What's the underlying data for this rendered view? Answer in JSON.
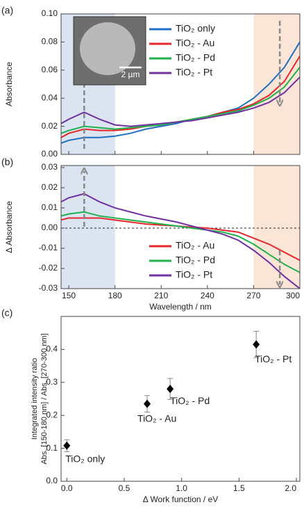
{
  "chart_data": [
    {
      "type": "line",
      "panel_label": "(a)",
      "ylabel": "Absorbance",
      "x": [
        145,
        150,
        160,
        170,
        180,
        190,
        200,
        210,
        220,
        230,
        240,
        250,
        260,
        270,
        280,
        290,
        300
      ],
      "series": [
        {
          "name": "TiO₂ only",
          "color": "#1f6fc5",
          "values": [
            0.008,
            0.01,
            0.012,
            0.012,
            0.013,
            0.015,
            0.018,
            0.02,
            0.022,
            0.025,
            0.027,
            0.03,
            0.033,
            0.04,
            0.05,
            0.062,
            0.08
          ]
        },
        {
          "name": "TiO₂ - Au",
          "color": "#e8262a",
          "values": [
            0.012,
            0.015,
            0.018,
            0.017,
            0.017,
            0.018,
            0.02,
            0.021,
            0.023,
            0.025,
            0.027,
            0.03,
            0.032,
            0.036,
            0.042,
            0.052,
            0.07
          ]
        },
        {
          "name": "TiO₂ - Pd",
          "color": "#1db24b",
          "values": [
            0.015,
            0.017,
            0.02,
            0.019,
            0.018,
            0.019,
            0.02,
            0.021,
            0.023,
            0.025,
            0.027,
            0.029,
            0.031,
            0.035,
            0.04,
            0.048,
            0.062
          ]
        },
        {
          "name": "TiO₂ - Pt",
          "color": "#7030a0",
          "values": [
            0.022,
            0.025,
            0.03,
            0.025,
            0.021,
            0.02,
            0.021,
            0.022,
            0.023,
            0.024,
            0.026,
            0.028,
            0.03,
            0.033,
            0.037,
            0.044,
            0.055
          ]
        }
      ],
      "xlim": [
        145,
        300
      ],
      "xticks": [
        150,
        180,
        210,
        240,
        270,
        300
      ],
      "ylim": [
        0,
        0.1
      ],
      "yticks": [
        {
          "value": 0,
          "label": "0.00"
        },
        0.02,
        0.04,
        0.06,
        0.08,
        {
          "value": 0.1,
          "label": "0.10"
        }
      ],
      "shaded": [
        {
          "range": [
            145,
            180
          ],
          "color": "#dbe4f1"
        },
        {
          "range": [
            270,
            300
          ],
          "color": "#fbe5d6"
        }
      ],
      "inset_scale": "2 µm"
    },
    {
      "type": "line",
      "panel_label": "(b)",
      "ylabel": "Δ Absorbance",
      "xlabel": "Wavelength / nm",
      "x": [
        145,
        150,
        160,
        170,
        180,
        190,
        200,
        210,
        220,
        230,
        240,
        250,
        260,
        270,
        280,
        290,
        300
      ],
      "series": [
        {
          "name": "TiO₂ - Au",
          "color": "#e8262a",
          "values": [
            0.004,
            0.005,
            0.005,
            0.005,
            0.004,
            0.003,
            0.002,
            0.0015,
            0.001,
            0.0005,
            0,
            -0.001,
            -0.002,
            -0.005,
            -0.008,
            -0.012,
            -0.016
          ]
        },
        {
          "name": "TiO₂ - Pd",
          "color": "#1db24b",
          "values": [
            0.006,
            0.007,
            0.008,
            0.006,
            0.005,
            0.004,
            0.003,
            0.002,
            0.001,
            0,
            -0.001,
            -0.002,
            -0.004,
            -0.008,
            -0.013,
            -0.018,
            -0.022
          ]
        },
        {
          "name": "TiO₂ - Pt",
          "color": "#7030a0",
          "values": [
            0.013,
            0.015,
            0.017,
            0.013,
            0.01,
            0.008,
            0.006,
            0.0045,
            0.003,
            0.001,
            -0.001,
            -0.003,
            -0.006,
            -0.011,
            -0.017,
            -0.024,
            -0.03
          ]
        }
      ],
      "xlim": [
        145,
        300
      ],
      "xticks": [
        150,
        180,
        210,
        240,
        270,
        300
      ],
      "ylim": [
        -0.03,
        0.031
      ],
      "yticks": [
        -0.03,
        -0.02,
        -0.01,
        {
          "value": 0,
          "label": "0.00"
        },
        0.01,
        0.02,
        0.03
      ],
      "shaded": [
        {
          "range": [
            145,
            180
          ],
          "color": "#dbe4f1"
        },
        {
          "range": [
            270,
            300
          ],
          "color": "#fbe5d6"
        }
      ],
      "zero_line": true
    },
    {
      "type": "scatter",
      "panel_label": "(c)",
      "xlabel": "Δ Work function / eV",
      "ylabel": [
        "Integrated intensity ratio",
        "Abs. [150-180 nm] / Abs. [270-300 nm]"
      ],
      "x": [
        0,
        0.7,
        0.9,
        1.65
      ],
      "values": [
        0.108,
        0.235,
        0.28,
        0.415
      ],
      "errors": [
        0.018,
        0.025,
        0.032,
        0.04
      ],
      "point_labels": [
        "TiO₂ only",
        "TiO₂ - Au",
        "TiO₂ - Pd",
        "TiO₂ - Pt"
      ],
      "color": "#000000",
      "xlim": [
        -0.05,
        2.03
      ],
      "xticks": [
        {
          "value": 0,
          "label": "0.0"
        },
        0.5,
        {
          "value": 1,
          "label": "1.0"
        },
        1.5,
        {
          "value": 2,
          "label": "2.0"
        }
      ],
      "ylim": [
        0,
        0.5
      ],
      "yticks": [
        {
          "value": 0,
          "label": "0.0"
        },
        0.1,
        0.2,
        0.3,
        0.4
      ]
    }
  ]
}
